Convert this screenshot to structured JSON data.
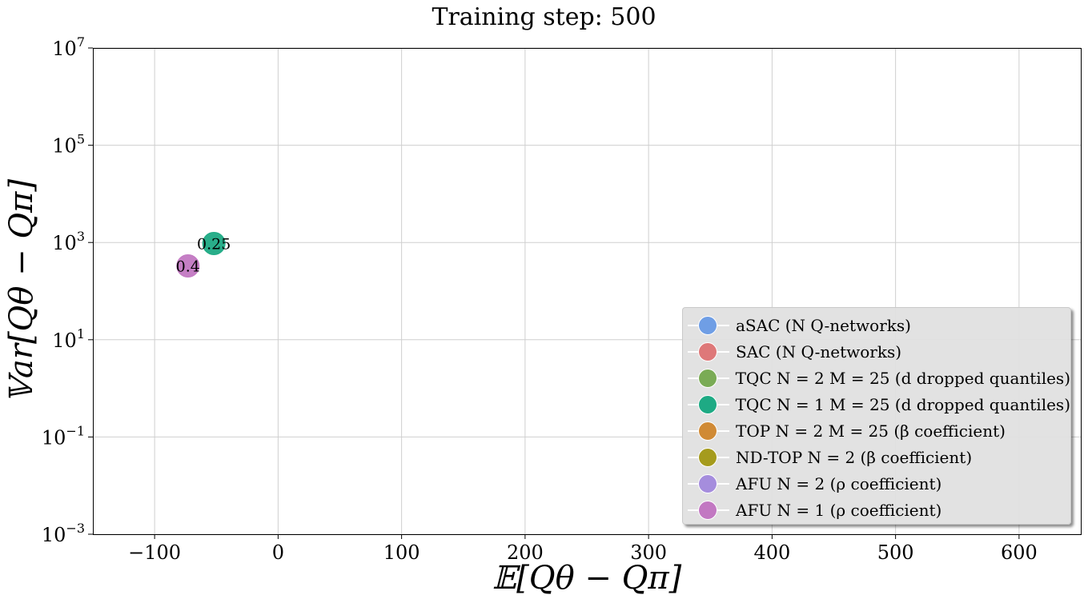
{
  "chart_data": {
    "type": "scatter",
    "title": "Training step: 500",
    "xlabel": "𝔼[Qθ − Qπ]",
    "ylabel": "𝕍ar[Qθ − Qπ]",
    "x_scale": "linear",
    "y_scale": "log",
    "xlim": [
      -150,
      650
    ],
    "ylim": [
      0.001,
      10000000
    ],
    "x_ticks": [
      {
        "value": -100,
        "label": "−100"
      },
      {
        "value": 0,
        "label": "0"
      },
      {
        "value": 100,
        "label": "100"
      },
      {
        "value": 200,
        "label": "200"
      },
      {
        "value": 300,
        "label": "300"
      },
      {
        "value": 400,
        "label": "400"
      },
      {
        "value": 500,
        "label": "500"
      },
      {
        "value": 600,
        "label": "600"
      }
    ],
    "y_ticks": [
      {
        "value": 0.001,
        "base": "10",
        "exp": "−3"
      },
      {
        "value": 0.1,
        "base": "10",
        "exp": "−1"
      },
      {
        "value": 10,
        "base": "10",
        "exp": "1"
      },
      {
        "value": 1000,
        "base": "10",
        "exp": "3"
      },
      {
        "value": 100000,
        "base": "10",
        "exp": "5"
      },
      {
        "value": 10000000,
        "base": "10",
        "exp": "7"
      }
    ],
    "grid": true,
    "legend_position": "lower-right",
    "series": [
      {
        "name": "aSAC (N Q-networks)",
        "color": "#6f9ee5",
        "points": []
      },
      {
        "name": "SAC (N Q-networks)",
        "color": "#de7879",
        "points": []
      },
      {
        "name": "TQC N = 2 M = 25 (d dropped quantiles)",
        "color": "#7aab55",
        "points": []
      },
      {
        "name": "TQC N = 1 M = 25 (d dropped quantiles)",
        "color": "#1eaa84",
        "points": [
          {
            "x": -52,
            "y": 950,
            "label": "0.25"
          }
        ]
      },
      {
        "name": "TOP N = 2 M = 25 (β coefficient)",
        "color": "#d08a35",
        "points": []
      },
      {
        "name": "ND-TOP N = 2 (β coefficient)",
        "color": "#a59b1d",
        "points": []
      },
      {
        "name": "AFU N = 2 (ρ coefficient)",
        "color": "#a58ddd",
        "points": []
      },
      {
        "name": "AFU N = 1 (ρ coefficient)",
        "color": "#c278c2",
        "points": [
          {
            "x": -73,
            "y": 330,
            "label": "0.4"
          }
        ]
      }
    ]
  }
}
